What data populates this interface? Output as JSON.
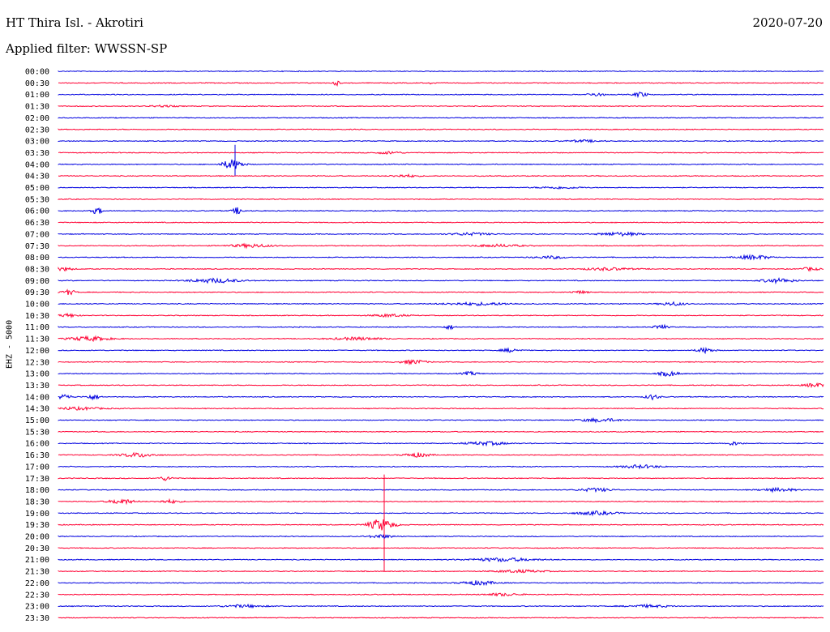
{
  "header": {
    "title": "HT Thira Isl. - Akrotiri",
    "filter": "Applied filter: WWSSN-SP",
    "date": "2020-07-20"
  },
  "colors": {
    "blue": "#0000e0",
    "red": "#ff0033"
  },
  "chart_data": {
    "type": "line",
    "title": "HT Thira Isl. - Akrotiri",
    "subtitle": "Applied filter: WWSSN-SP",
    "ylabel": "EHZ - 5000",
    "xlabel": "",
    "grid": false,
    "legend": "none",
    "row_labels": [
      "00:00",
      "00:30",
      "01:00",
      "01:30",
      "02:00",
      "02:30",
      "03:00",
      "03:30",
      "04:00",
      "04:30",
      "05:00",
      "05:30",
      "06:00",
      "06:30",
      "07:00",
      "07:30",
      "08:00",
      "08:30",
      "09:00",
      "09:30",
      "10:00",
      "10:30",
      "11:00",
      "11:30",
      "12:00",
      "12:30",
      "13:00",
      "13:30",
      "14:00",
      "14:30",
      "15:00",
      "15:30",
      "16:00",
      "16:30",
      "17:00",
      "17:30",
      "18:00",
      "18:30",
      "19:00",
      "19:30",
      "20:00",
      "20:30",
      "21:00",
      "21:30",
      "22:00",
      "22:30",
      "23:00",
      "23:30"
    ],
    "row_colors": [
      "blue",
      "red",
      "blue",
      "red",
      "blue",
      "red",
      "blue",
      "red",
      "blue",
      "red",
      "blue",
      "red",
      "blue",
      "red",
      "blue",
      "red",
      "blue",
      "red",
      "blue",
      "red",
      "blue",
      "red",
      "blue",
      "red",
      "blue",
      "red",
      "blue",
      "red",
      "blue",
      "red",
      "blue",
      "red",
      "blue",
      "red",
      "blue",
      "red",
      "blue",
      "red",
      "blue",
      "red",
      "blue",
      "red",
      "blue",
      "red",
      "blue",
      "red",
      "blue",
      "red"
    ]
  }
}
